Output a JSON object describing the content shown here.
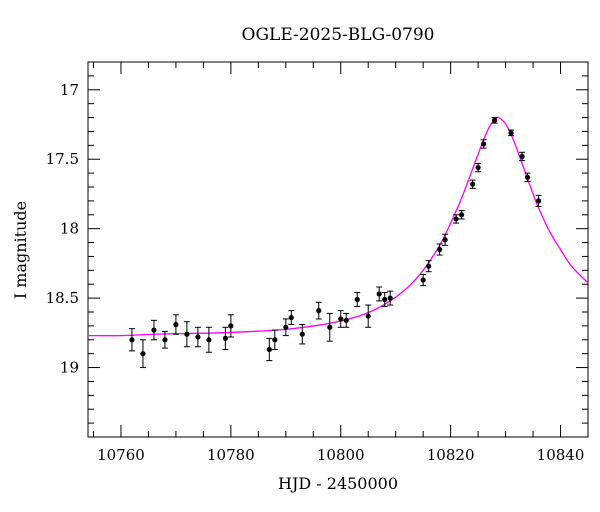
{
  "chart_data": {
    "type": "scatter",
    "title": "OGLE-2025-BLG-0790",
    "xlabel": "HJD - 2450000",
    "ylabel": "I magnitude",
    "xlim": [
      10754,
      10845
    ],
    "ylim": [
      19.5,
      16.8
    ],
    "y_inverted": true,
    "x_ticks": [
      10760,
      10780,
      10800,
      10820,
      10840
    ],
    "y_ticks": [
      17,
      17.5,
      18,
      18.5,
      19
    ],
    "x_tick_labels": [
      "10760",
      "10780",
      "10800",
      "10820",
      "10840"
    ],
    "y_tick_labels": [
      "17",
      "17.5",
      "18",
      "18.5",
      "19"
    ],
    "grid": false,
    "legend": "none",
    "colors": {
      "points": "#000000",
      "model": "#ff00ff"
    },
    "series": [
      {
        "kind": "points_with_errorbars",
        "points": [
          {
            "x": 10762.0,
            "y": 18.8,
            "err": 0.08
          },
          {
            "x": 10764.0,
            "y": 18.9,
            "err": 0.1
          },
          {
            "x": 10766.0,
            "y": 18.73,
            "err": 0.07
          },
          {
            "x": 10768.0,
            "y": 18.8,
            "err": 0.06
          },
          {
            "x": 10770.0,
            "y": 18.69,
            "err": 0.07
          },
          {
            "x": 10772.0,
            "y": 18.76,
            "err": 0.09
          },
          {
            "x": 10774.0,
            "y": 18.78,
            "err": 0.07
          },
          {
            "x": 10776.0,
            "y": 18.8,
            "err": 0.09
          },
          {
            "x": 10779.0,
            "y": 18.79,
            "err": 0.08
          },
          {
            "x": 10780.0,
            "y": 18.7,
            "err": 0.08
          },
          {
            "x": 10787.0,
            "y": 18.87,
            "err": 0.08
          },
          {
            "x": 10788.0,
            "y": 18.8,
            "err": 0.07
          },
          {
            "x": 10790.0,
            "y": 18.71,
            "err": 0.06
          },
          {
            "x": 10791.0,
            "y": 18.64,
            "err": 0.05
          },
          {
            "x": 10793.0,
            "y": 18.76,
            "err": 0.07
          },
          {
            "x": 10796.0,
            "y": 18.59,
            "err": 0.06
          },
          {
            "x": 10798.0,
            "y": 18.71,
            "err": 0.1
          },
          {
            "x": 10800.0,
            "y": 18.65,
            "err": 0.06
          },
          {
            "x": 10801.0,
            "y": 18.66,
            "err": 0.05
          },
          {
            "x": 10803.0,
            "y": 18.51,
            "err": 0.05
          },
          {
            "x": 10805.0,
            "y": 18.63,
            "err": 0.08
          },
          {
            "x": 10807.0,
            "y": 18.47,
            "err": 0.05
          },
          {
            "x": 10808.0,
            "y": 18.51,
            "err": 0.05
          },
          {
            "x": 10809.0,
            "y": 18.5,
            "err": 0.05
          },
          {
            "x": 10815.0,
            "y": 18.37,
            "err": 0.04
          },
          {
            "x": 10816.0,
            "y": 18.27,
            "err": 0.04
          },
          {
            "x": 10818.0,
            "y": 18.15,
            "err": 0.04
          },
          {
            "x": 10819.0,
            "y": 18.08,
            "err": 0.04
          },
          {
            "x": 10821.0,
            "y": 17.93,
            "err": 0.03
          },
          {
            "x": 10822.0,
            "y": 17.9,
            "err": 0.03
          },
          {
            "x": 10824.0,
            "y": 17.68,
            "err": 0.03
          },
          {
            "x": 10825.0,
            "y": 17.56,
            "err": 0.03
          },
          {
            "x": 10826.0,
            "y": 17.39,
            "err": 0.03
          },
          {
            "x": 10828.0,
            "y": 17.22,
            "err": 0.02
          },
          {
            "x": 10831.0,
            "y": 17.31,
            "err": 0.02
          },
          {
            "x": 10833.0,
            "y": 17.48,
            "err": 0.03
          },
          {
            "x": 10834.0,
            "y": 17.63,
            "err": 0.03
          },
          {
            "x": 10836.0,
            "y": 17.8,
            "err": 0.04
          }
        ]
      },
      {
        "kind": "model_curve",
        "x": [
          10754,
          10760,
          10766,
          10772,
          10778,
          10784,
          10790,
          10796,
          10800,
          10804,
          10808,
          10812,
          10815,
          10818,
          10820,
          10822,
          10824,
          10826,
          10827,
          10828,
          10828.6,
          10829,
          10830,
          10831,
          10832,
          10833,
          10834,
          10835,
          10836,
          10838,
          10840,
          10842,
          10845
        ],
        "y": [
          18.77,
          18.77,
          18.76,
          18.755,
          18.75,
          18.74,
          18.725,
          18.695,
          18.665,
          18.62,
          18.545,
          18.43,
          18.3,
          18.12,
          17.96,
          17.78,
          17.57,
          17.36,
          17.27,
          17.215,
          17.2,
          17.205,
          17.245,
          17.32,
          17.42,
          17.53,
          17.64,
          17.75,
          17.85,
          18.02,
          18.15,
          18.27,
          18.39
        ]
      }
    ]
  }
}
